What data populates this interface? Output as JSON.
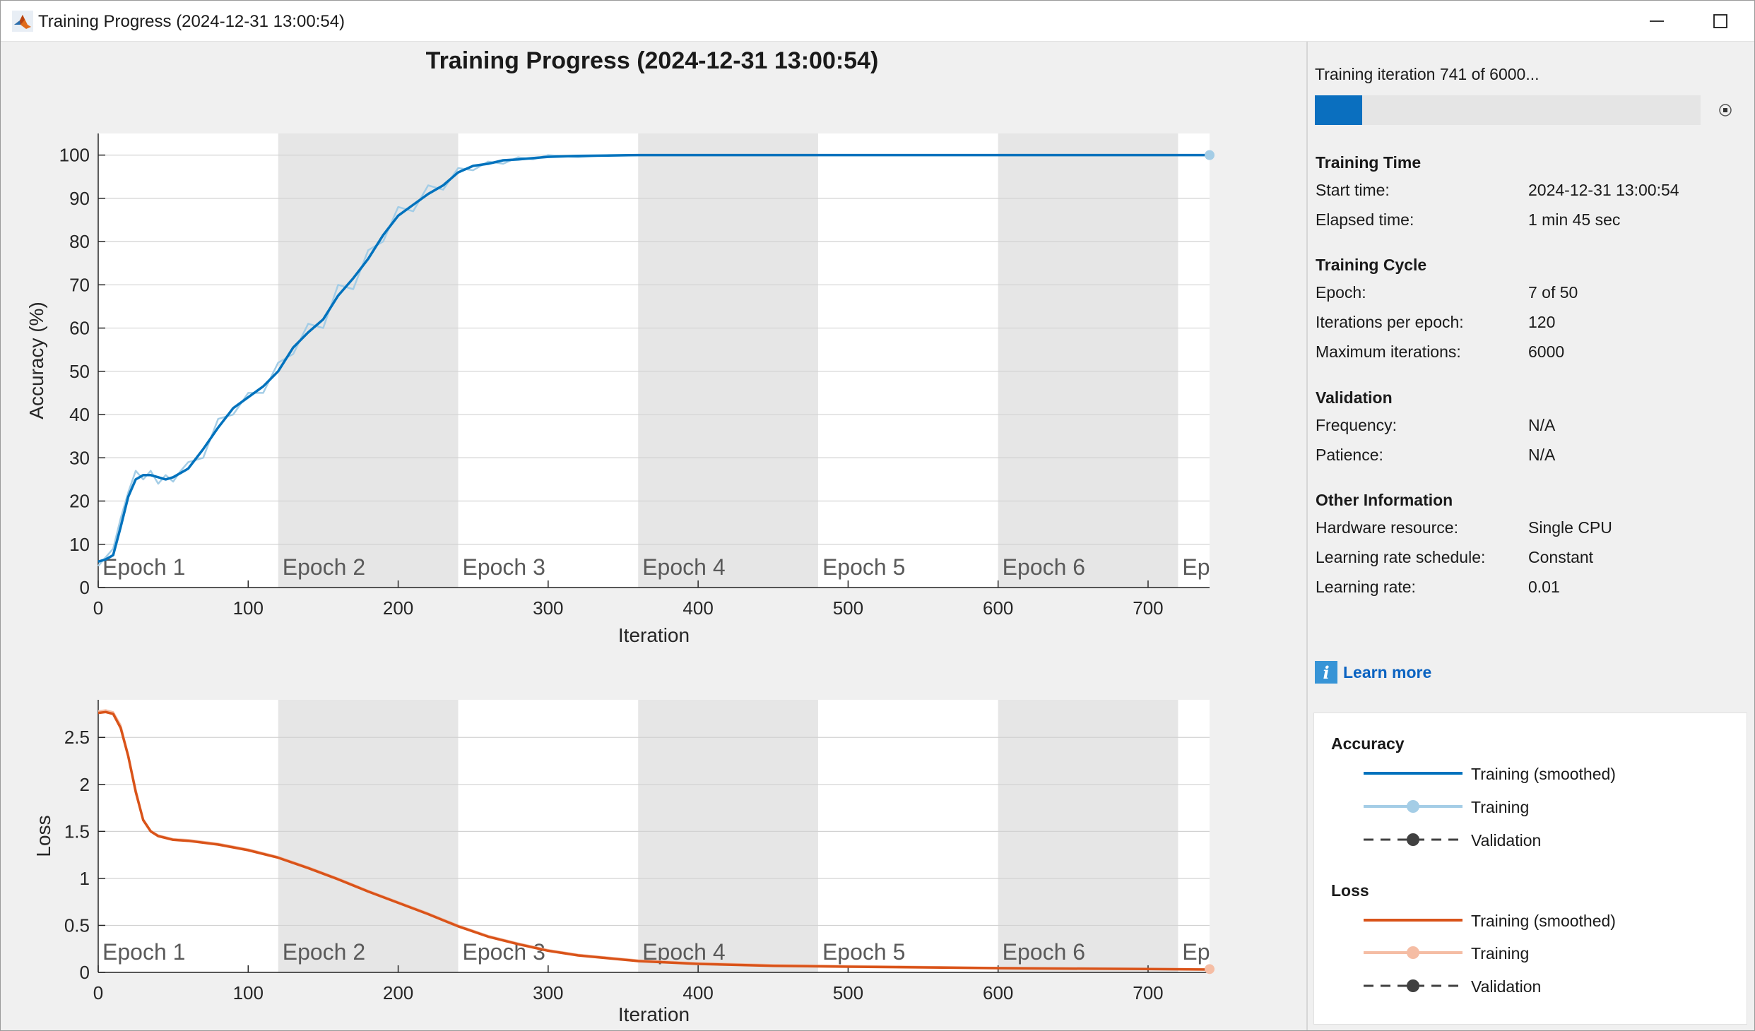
{
  "window": {
    "title": "Training Progress (2024-12-31 13:00:54)",
    "icon": "matlab-logo-icon",
    "controls": [
      "minimize-icon",
      "maximize-icon",
      "close-icon"
    ]
  },
  "plot_title": "Training Progress (2024-12-31 13:00:54)",
  "epoch_labels": [
    "Epoch 1",
    "Epoch 2",
    "Epoch 3",
    "Epoch 4",
    "Epoch 5",
    "Epoch 6",
    "Ep"
  ],
  "chart_data": [
    {
      "type": "line",
      "title": "",
      "xlabel": "Iteration",
      "ylabel": "Accuracy (%)",
      "xlim": [
        0,
        741
      ],
      "ylim": [
        0,
        105
      ],
      "xticks": [
        0,
        100,
        200,
        300,
        400,
        500,
        600,
        700
      ],
      "yticks": [
        0,
        10,
        20,
        30,
        40,
        50,
        60,
        70,
        80,
        90,
        100
      ],
      "grid": true,
      "epoch_boundaries": [
        0,
        120,
        240,
        360,
        480,
        600,
        720,
        741
      ],
      "series": [
        {
          "name": "Training (smoothed)",
          "color": "#0072bd",
          "x": [
            0,
            5,
            10,
            15,
            20,
            25,
            30,
            35,
            40,
            45,
            50,
            55,
            60,
            70,
            80,
            90,
            100,
            110,
            120,
            130,
            140,
            150,
            160,
            170,
            180,
            190,
            200,
            210,
            220,
            230,
            240,
            250,
            260,
            270,
            280,
            290,
            300,
            320,
            340,
            360,
            400,
            500,
            600,
            700,
            741
          ],
          "y": [
            6,
            6.5,
            7.5,
            14,
            21,
            25,
            26,
            26,
            25.5,
            25,
            25.5,
            26.5,
            27.5,
            32,
            37,
            41.5,
            44,
            46.5,
            50,
            55.5,
            59,
            62,
            67.5,
            71.5,
            76,
            81.5,
            86,
            88.5,
            91,
            93,
            96,
            97.5,
            98,
            98.8,
            99,
            99.3,
            99.6,
            99.8,
            99.9,
            100,
            100,
            100,
            100,
            100,
            100
          ]
        },
        {
          "name": "Training",
          "color": "#a4cde6",
          "x": [
            0,
            5,
            10,
            15,
            20,
            25,
            30,
            35,
            40,
            45,
            50,
            55,
            60,
            70,
            80,
            90,
            100,
            110,
            120,
            130,
            140,
            150,
            160,
            170,
            180,
            190,
            200,
            210,
            220,
            230,
            240,
            250,
            260,
            270,
            280,
            290,
            300,
            320,
            340,
            360,
            400,
            500,
            600,
            700,
            741
          ],
          "y": [
            5,
            7,
            9,
            16,
            22,
            27,
            25,
            27,
            24,
            26,
            24.5,
            27,
            29,
            30,
            39,
            40,
            45,
            45,
            52,
            54,
            61,
            60,
            70,
            69,
            78,
            80,
            88,
            87,
            93,
            92,
            97,
            96.5,
            98.5,
            98,
            99.5,
            99,
            100,
            99.5,
            100,
            100,
            100,
            100,
            100,
            100,
            100
          ]
        },
        {
          "name": "Validation",
          "color": "#404040",
          "x": [],
          "y": []
        }
      ]
    },
    {
      "type": "line",
      "title": "",
      "xlabel": "Iteration",
      "ylabel": "Loss",
      "xlim": [
        0,
        741
      ],
      "ylim": [
        0,
        2.9
      ],
      "xticks": [
        0,
        100,
        200,
        300,
        400,
        500,
        600,
        700
      ],
      "yticks": [
        0,
        0.5,
        1,
        1.5,
        2,
        2.5
      ],
      "ytick_labels": [
        "0",
        "0.5",
        "1",
        "1.5",
        "2",
        "2.5"
      ],
      "grid": true,
      "epoch_boundaries": [
        0,
        120,
        240,
        360,
        480,
        600,
        720,
        741
      ],
      "series": [
        {
          "name": "Training (smoothed)",
          "color": "#d95319",
          "x": [
            0,
            5,
            10,
            15,
            20,
            25,
            30,
            35,
            40,
            50,
            60,
            80,
            100,
            120,
            140,
            160,
            180,
            200,
            220,
            240,
            260,
            280,
            300,
            320,
            340,
            360,
            400,
            450,
            500,
            600,
            700,
            741
          ],
          "y": [
            2.76,
            2.77,
            2.75,
            2.6,
            2.3,
            1.92,
            1.62,
            1.5,
            1.45,
            1.41,
            1.4,
            1.36,
            1.3,
            1.22,
            1.11,
            0.99,
            0.86,
            0.74,
            0.62,
            0.49,
            0.38,
            0.3,
            0.23,
            0.18,
            0.15,
            0.12,
            0.09,
            0.07,
            0.06,
            0.045,
            0.035,
            0.03
          ]
        },
        {
          "name": "Training",
          "color": "#f5bda4",
          "x": [
            0,
            5,
            10,
            15,
            20,
            25,
            30,
            35,
            40,
            50,
            60,
            80,
            100,
            120,
            140,
            160,
            180,
            200,
            220,
            240,
            260,
            280,
            300,
            320,
            340,
            360,
            400,
            450,
            500,
            600,
            700,
            741
          ],
          "y": [
            2.78,
            2.79,
            2.77,
            2.63,
            2.32,
            1.95,
            1.63,
            1.51,
            1.46,
            1.42,
            1.41,
            1.37,
            1.31,
            1.23,
            1.12,
            1.0,
            0.87,
            0.75,
            0.63,
            0.5,
            0.39,
            0.31,
            0.24,
            0.19,
            0.16,
            0.13,
            0.1,
            0.08,
            0.07,
            0.05,
            0.04,
            0.035
          ]
        },
        {
          "name": "Validation",
          "color": "#404040",
          "x": [],
          "y": []
        }
      ]
    }
  ],
  "side_panel": {
    "status": "Training iteration 741 of 6000...",
    "progress_fraction": 0.1235,
    "progress_color": "#0a6fbf",
    "stop_icon": "stop-icon",
    "sections": [
      {
        "heading": "Training Time",
        "rows": [
          {
            "label": "Start time:",
            "value": "2024-12-31 13:00:54"
          },
          {
            "label": "Elapsed time:",
            "value": "1 min 45 sec"
          }
        ]
      },
      {
        "heading": "Training Cycle",
        "rows": [
          {
            "label": "Epoch:",
            "value": "7 of 50"
          },
          {
            "label": "Iterations per epoch:",
            "value": "120"
          },
          {
            "label": "Maximum iterations:",
            "value": "6000"
          }
        ]
      },
      {
        "heading": "Validation",
        "rows": [
          {
            "label": "Frequency:",
            "value": "N/A"
          },
          {
            "label": "Patience:",
            "value": "N/A"
          }
        ]
      },
      {
        "heading": "Other Information",
        "rows": [
          {
            "label": "Hardware resource:",
            "value": "Single CPU"
          },
          {
            "label": "Learning rate schedule:",
            "value": "Constant"
          },
          {
            "label": "Learning rate:",
            "value": "0.01"
          }
        ]
      }
    ],
    "learn_more": {
      "icon": "info-icon",
      "label": "Learn more"
    }
  },
  "legend": {
    "groups": [
      {
        "heading": "Accuracy",
        "entries": [
          {
            "label": "Training (smoothed)",
            "style": "solid",
            "color": "#0072bd",
            "marker": false
          },
          {
            "label": "Training",
            "style": "solid",
            "color": "#a4cde6",
            "marker": true
          },
          {
            "label": "Validation",
            "style": "dashed",
            "color": "#404040",
            "marker": true
          }
        ]
      },
      {
        "heading": "Loss",
        "entries": [
          {
            "label": "Training (smoothed)",
            "style": "solid",
            "color": "#d95319",
            "marker": false
          },
          {
            "label": "Training",
            "style": "solid",
            "color": "#f5bda4",
            "marker": true
          },
          {
            "label": "Validation",
            "style": "dashed",
            "color": "#404040",
            "marker": true
          }
        ]
      }
    ]
  }
}
